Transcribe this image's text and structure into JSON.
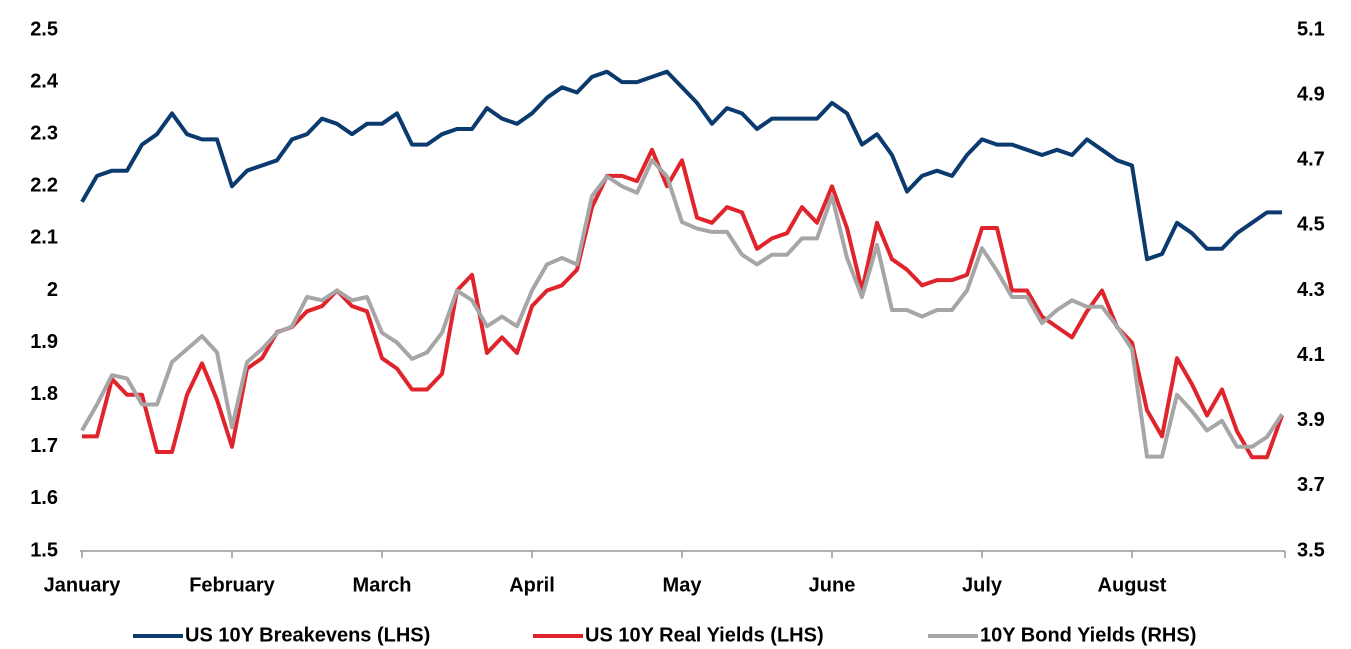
{
  "chart_data": {
    "type": "line",
    "categories": [
      "January",
      null,
      null,
      null,
      null,
      null,
      null,
      null,
      null,
      null,
      "February",
      null,
      null,
      null,
      null,
      null,
      null,
      null,
      null,
      null,
      "March",
      null,
      null,
      null,
      null,
      null,
      null,
      null,
      null,
      null,
      "April",
      null,
      null,
      null,
      null,
      null,
      null,
      null,
      null,
      null,
      "May",
      null,
      null,
      null,
      null,
      null,
      null,
      null,
      null,
      null,
      "June",
      null,
      null,
      null,
      null,
      null,
      null,
      null,
      null,
      null,
      "July",
      null,
      null,
      null,
      null,
      null,
      null,
      null,
      null,
      null,
      "August",
      null,
      null,
      null,
      null,
      null,
      null,
      null,
      null,
      null,
      null
    ],
    "series": [
      {
        "name": "US 10Y Breakevens (LHS)",
        "color": "#0b3a6e",
        "values": [
          2.17,
          2.22,
          2.23,
          2.23,
          2.28,
          2.3,
          2.34,
          2.3,
          2.29,
          2.29,
          2.2,
          2.23,
          2.24,
          2.25,
          2.29,
          2.3,
          2.33,
          2.32,
          2.3,
          2.32,
          2.32,
          2.34,
          2.28,
          2.28,
          2.3,
          2.31,
          2.31,
          2.35,
          2.33,
          2.32,
          2.34,
          2.37,
          2.39,
          2.38,
          2.41,
          2.42,
          2.4,
          2.4,
          2.41,
          2.42,
          2.39,
          2.36,
          2.32,
          2.35,
          2.34,
          2.31,
          2.33,
          2.33,
          2.33,
          2.33,
          2.36,
          2.34,
          2.28,
          2.3,
          2.26,
          2.19,
          2.22,
          2.23,
          2.22,
          2.26,
          2.29,
          2.28,
          2.28,
          2.27,
          2.26,
          2.27,
          2.26,
          2.29,
          2.27,
          2.25,
          2.24,
          2.06,
          2.07,
          2.13,
          2.11,
          2.08,
          2.08,
          2.11,
          2.13,
          2.15,
          2.15
        ]
      },
      {
        "name": "US 10Y Real Yields (LHS)",
        "color": "#e0242b",
        "values": [
          1.72,
          1.72,
          1.83,
          1.8,
          1.8,
          1.69,
          1.69,
          1.8,
          1.86,
          1.79,
          1.7,
          1.85,
          1.87,
          1.92,
          1.93,
          1.96,
          1.97,
          2.0,
          1.97,
          1.96,
          1.87,
          1.85,
          1.81,
          1.81,
          1.84,
          2.0,
          2.03,
          1.88,
          1.91,
          1.88,
          1.97,
          2.0,
          2.01,
          2.04,
          2.16,
          2.22,
          2.22,
          2.21,
          2.27,
          2.2,
          2.25,
          2.14,
          2.13,
          2.16,
          2.15,
          2.08,
          2.1,
          2.11,
          2.16,
          2.13,
          2.2,
          2.12,
          2.0,
          2.13,
          2.06,
          2.04,
          2.01,
          2.02,
          2.02,
          2.03,
          2.12,
          2.12,
          2.0,
          2.0,
          1.95,
          1.93,
          1.91,
          1.96,
          2.0,
          1.93,
          1.9,
          1.77,
          1.72,
          1.87,
          1.82,
          1.76,
          1.81,
          1.73,
          1.68,
          1.68,
          1.76
        ]
      },
      {
        "name": "10Y Bond Yields (RHS)",
        "color": "#a6a6a6",
        "axis": "y2",
        "values": [
          3.87,
          3.95,
          4.04,
          4.03,
          3.95,
          3.95,
          4.08,
          4.12,
          4.16,
          4.11,
          3.88,
          4.08,
          4.12,
          4.17,
          4.19,
          4.28,
          4.27,
          4.3,
          4.27,
          4.28,
          4.17,
          4.14,
          4.09,
          4.11,
          4.17,
          4.3,
          4.27,
          4.19,
          4.22,
          4.19,
          4.3,
          4.38,
          4.4,
          4.38,
          4.59,
          4.65,
          4.62,
          4.6,
          4.7,
          4.65,
          4.51,
          4.49,
          4.48,
          4.48,
          4.41,
          4.38,
          4.41,
          4.41,
          4.46,
          4.46,
          4.59,
          4.4,
          4.28,
          4.44,
          4.24,
          4.24,
          4.22,
          4.24,
          4.24,
          4.3,
          4.43,
          4.36,
          4.28,
          4.28,
          4.2,
          4.24,
          4.27,
          4.25,
          4.25,
          4.19,
          4.12,
          3.79,
          3.79,
          3.98,
          3.93,
          3.87,
          3.9,
          3.82,
          3.82,
          3.85,
          3.92
        ]
      }
    ],
    "ylim": [
      1.5,
      2.5
    ],
    "yticks": [
      1.5,
      1.6,
      1.7,
      1.8,
      1.9,
      2,
      2.1,
      2.2,
      2.3,
      2.4,
      2.5
    ],
    "y2lim": [
      3.5,
      5.1
    ],
    "y2ticks": [
      3.5,
      3.7,
      3.9,
      4.1,
      4.3,
      4.5,
      4.7,
      4.9,
      5.1
    ],
    "grid": false,
    "legend": "bottom"
  }
}
